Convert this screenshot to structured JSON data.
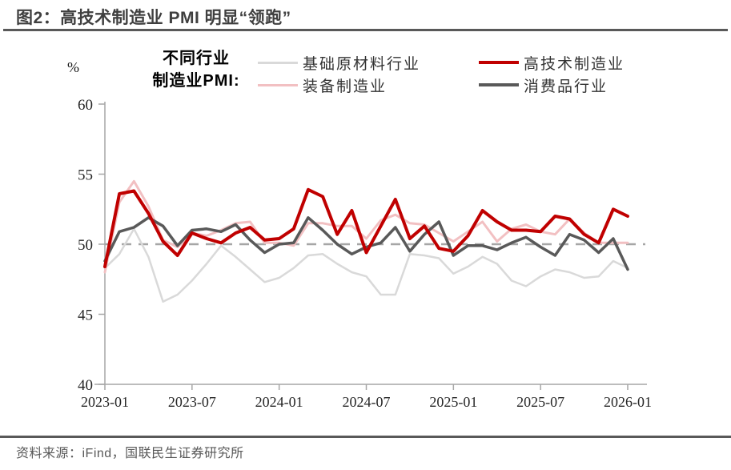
{
  "header": {
    "title": "图2：高技术制造业 PMI 明显“领跑”"
  },
  "legend": {
    "unit_label": "%",
    "title_line1": "不同行业",
    "title_line2": "制造业PMI:",
    "items": [
      {
        "key": "basic-materials",
        "label": "基础原材料行业",
        "color": "#d9d9d9"
      },
      {
        "key": "high-tech",
        "label": "高技术制造业",
        "color": "#c00000"
      },
      {
        "key": "equipment",
        "label": "装备制造业",
        "color": "#f2c0c2"
      },
      {
        "key": "consumer-goods",
        "label": "消费品行业",
        "color": "#595959"
      }
    ]
  },
  "chart_data": {
    "type": "line",
    "title": "不同行业制造业PMI",
    "ylabel": "%",
    "ylim": [
      40,
      60
    ],
    "y_ticks": [
      40,
      45,
      50,
      55,
      60
    ],
    "reference_line": 50,
    "grid": false,
    "legend_position": "top",
    "x": [
      "2023-01",
      "2023-02",
      "2023-03",
      "2023-04",
      "2023-05",
      "2023-06",
      "2023-07",
      "2023-08",
      "2023-09",
      "2023-10",
      "2023-11",
      "2023-12",
      "2024-01",
      "2024-02",
      "2024-03",
      "2024-04",
      "2024-05",
      "2024-06",
      "2024-07",
      "2024-08",
      "2024-09",
      "2024-10",
      "2024-11",
      "2024-12",
      "2025-01",
      "2025-02",
      "2025-03",
      "2025-04",
      "2025-05",
      "2025-06",
      "2025-07",
      "2025-08",
      "2025-09",
      "2025-10",
      "2025-11",
      "2025-12",
      "2026-01"
    ],
    "x_tick_indices": [
      0,
      6,
      12,
      18,
      24,
      30,
      36
    ],
    "x_tick_labels_shown": [
      "2023-01",
      "2023-07",
      "2024-01",
      "2024-07",
      "2025-01",
      "2025-07",
      "2026-01"
    ],
    "series": [
      {
        "name": "基础原材料行业",
        "key": "basic-materials",
        "color": "#d9d9d9",
        "width": 2.5,
        "values": [
          48.3,
          49.3,
          51.1,
          49.1,
          45.9,
          46.4,
          47.4,
          48.6,
          49.9,
          49.1,
          48.2,
          47.3,
          47.6,
          48.3,
          49.2,
          49.3,
          48.6,
          48.0,
          47.7,
          46.4,
          46.4,
          49.3,
          49.2,
          49.0,
          47.9,
          48.4,
          49.1,
          48.6,
          47.4,
          47.0,
          47.7,
          48.2,
          48.0,
          47.6,
          47.7,
          48.8,
          48.3
        ]
      },
      {
        "name": "装备制造业",
        "key": "equipment",
        "color": "#f2c0c2",
        "width": 3,
        "values": [
          48.0,
          53.0,
          54.5,
          52.7,
          50.3,
          49.8,
          50.8,
          50.6,
          51.0,
          51.5,
          51.6,
          50.1,
          50.1,
          49.9,
          51.5,
          51.5,
          51.3,
          51.3,
          50.4,
          51.7,
          52.1,
          51.5,
          51.4,
          50.8,
          50.2,
          50.9,
          51.6,
          50.2,
          51.1,
          51.4,
          50.9,
          50.7,
          51.8,
          50.8,
          50.1,
          50.1,
          50.1
        ]
      },
      {
        "name": "消费品行业",
        "key": "consumer-goods",
        "color": "#595959",
        "width": 3.5,
        "values": [
          48.8,
          50.9,
          51.2,
          51.9,
          51.3,
          49.9,
          51.0,
          51.1,
          50.9,
          51.4,
          50.3,
          49.4,
          50.0,
          50.1,
          51.9,
          51.0,
          50.0,
          49.3,
          49.8,
          50.1,
          51.2,
          49.5,
          50.7,
          51.6,
          49.2,
          49.9,
          49.9,
          49.6,
          50.1,
          50.5,
          49.8,
          49.2,
          50.7,
          50.3,
          49.4,
          50.4,
          48.2
        ]
      },
      {
        "name": "高技术制造业",
        "key": "high-tech",
        "color": "#c00000",
        "width": 4,
        "values": [
          48.4,
          53.6,
          53.8,
          52.2,
          50.2,
          49.2,
          50.8,
          50.4,
          50.1,
          50.8,
          51.2,
          50.3,
          50.4,
          51.1,
          53.9,
          53.4,
          50.7,
          52.4,
          49.4,
          51.3,
          53.2,
          50.4,
          51.3,
          49.7,
          49.5,
          50.6,
          52.4,
          51.6,
          51.0,
          51.0,
          50.9,
          52.0,
          51.8,
          50.7,
          50.1,
          52.5,
          52.0
        ]
      }
    ]
  },
  "footer": {
    "source": "资料来源：iFind，国联民生证券研究所"
  }
}
